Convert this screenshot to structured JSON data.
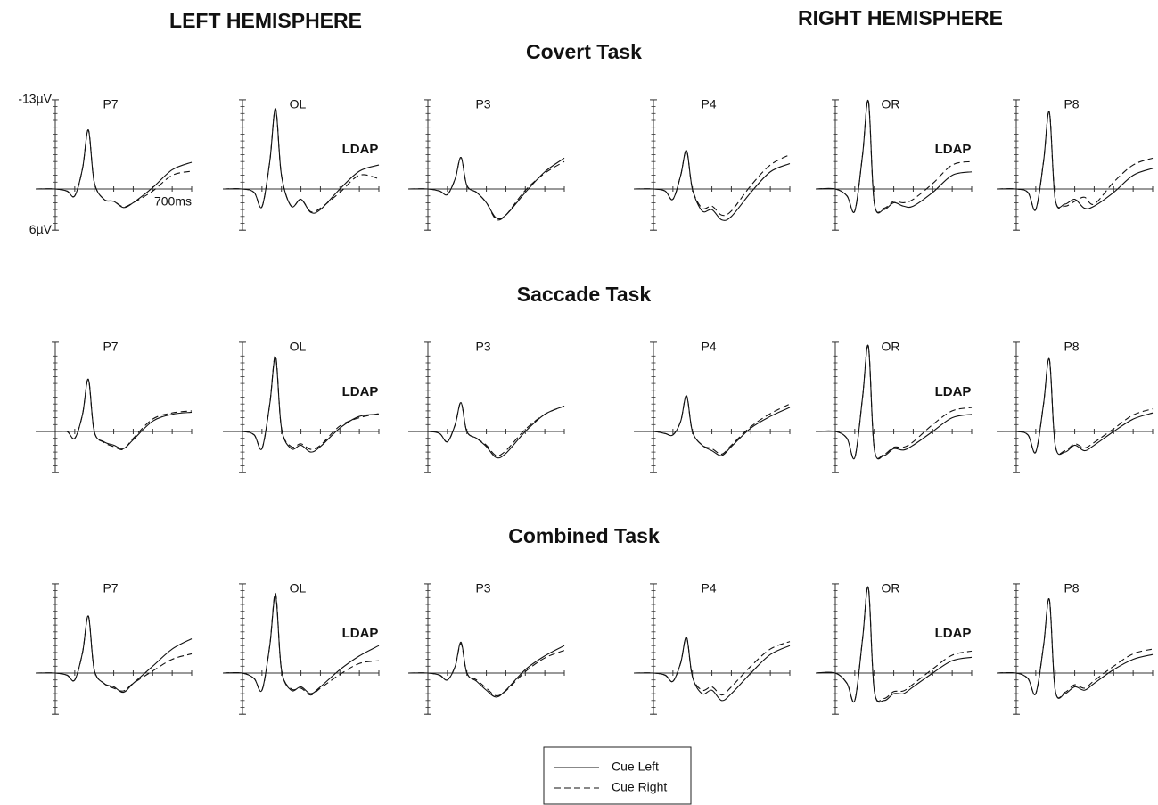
{
  "titles": {
    "left": "LEFT HEMISPHERE",
    "right": "RIGHT HEMISPHERE"
  },
  "axes": {
    "xlim": [
      -100,
      700
    ],
    "ylim": [
      6,
      -13
    ],
    "xticks": [
      0,
      100,
      200,
      300,
      400,
      500,
      600,
      {
        "value": 700,
        "label": "700ms"
      }
    ],
    "yticks": [
      {
        "value": -13,
        "label": "-13µV"
      },
      {
        "value": 6,
        "label": "6µV"
      }
    ]
  },
  "x": [
    -100,
    0,
    60,
    100,
    140,
    170,
    200,
    250,
    300,
    350,
    400,
    500,
    600,
    700
  ],
  "legend": [
    {
      "name": "Cue Left",
      "dash": "solid"
    },
    {
      "name": "Cue Right",
      "dash": "dashed"
    }
  ],
  "tasks": [
    {
      "title": "Covert Task",
      "panels": [
        {
          "label": "P7",
          "left": [
            0,
            0,
            0.3,
            1,
            -3,
            -8.6,
            -1,
            1.5,
            1.8,
            2.7,
            2,
            -0.2,
            -2.8,
            -3.9
          ],
          "right": [
            0,
            0,
            0.3,
            1,
            -3,
            -8.6,
            -1,
            1.5,
            1.8,
            2.6,
            2,
            0.3,
            -2,
            -2.6
          ]
        },
        {
          "label": "OL",
          "annotation": "LDAP",
          "left": [
            0,
            0,
            0.5,
            2.6,
            -4,
            -11.7,
            -2,
            2.5,
            1.5,
            3.4,
            3,
            0,
            -2.6,
            -3.5
          ],
          "right": [
            0,
            0,
            0.5,
            2.6,
            -4,
            -11.7,
            -2,
            2.5,
            1.5,
            3.3,
            2.8,
            0.5,
            -2,
            -1.5
          ]
        },
        {
          "label": "P3",
          "left": [
            0,
            0,
            0.3,
            0.8,
            -1.5,
            -4.6,
            -0.5,
            0.5,
            2,
            4.2,
            3.8,
            0.5,
            -2.5,
            -4.5
          ],
          "right": [
            0,
            0,
            0.3,
            0.8,
            -1.5,
            -4.6,
            -0.5,
            0.5,
            2,
            4.4,
            3.8,
            0.2,
            -2.3,
            -4
          ]
        },
        {
          "label": "P4",
          "left": [
            0,
            0,
            0.3,
            1.5,
            -2,
            -5.6,
            0,
            3.2,
            3,
            4.5,
            4,
            0.5,
            -2.5,
            -3.7
          ],
          "right": [
            0,
            0,
            0.3,
            1.5,
            -2,
            -5.6,
            0,
            2.8,
            2.5,
            3.8,
            3.2,
            -0.5,
            -3.5,
            -5
          ]
        },
        {
          "label": "OR",
          "annotation": "LDAP",
          "left": [
            0,
            0,
            1,
            3.2,
            -5,
            -12.8,
            2,
            3,
            2,
            2.5,
            2.5,
            0.5,
            -2,
            -2.5
          ],
          "right": [
            0,
            0,
            1,
            3.2,
            -5,
            -12.8,
            2,
            2.8,
            1.8,
            2,
            1.5,
            -0.8,
            -3.5,
            -4
          ]
        },
        {
          "label": "P8",
          "left": [
            0,
            0,
            0.5,
            3,
            -4,
            -11.2,
            1.5,
            2.2,
            1.5,
            2.8,
            2.5,
            0.5,
            -2,
            -3
          ],
          "right": [
            0,
            0,
            0.5,
            3,
            -4,
            -11.2,
            1.5,
            2.5,
            1.8,
            1.2,
            2.2,
            -1,
            -3.5,
            -4.5
          ]
        }
      ]
    },
    {
      "title": "Saccade Task",
      "panels": [
        {
          "label": "P7",
          "left": [
            0,
            0,
            0,
            1,
            -2.5,
            -7.6,
            0,
            1.5,
            2,
            2.5,
            1.2,
            -1.5,
            -2.5,
            -2.8
          ],
          "right": [
            0,
            0,
            0,
            1,
            -2.5,
            -7.6,
            0,
            1.6,
            2.2,
            2.6,
            1,
            -1.8,
            -2.7,
            -3
          ]
        },
        {
          "label": "OL",
          "annotation": "LDAP",
          "left": [
            0,
            0,
            0.5,
            2.5,
            -4,
            -10.8,
            -0.5,
            2.5,
            2,
            3,
            2.2,
            -0.5,
            -2.2,
            -2.5
          ],
          "right": [
            0,
            0,
            0.5,
            2.5,
            -4,
            -11,
            -0.5,
            2.2,
            1.8,
            2.6,
            2,
            -0.8,
            -2,
            -2.6
          ]
        },
        {
          "label": "P3",
          "left": [
            0,
            0,
            0.3,
            1.5,
            -1,
            -4.2,
            0,
            1,
            2.2,
            3.8,
            3.2,
            0,
            -2.5,
            -3.7
          ],
          "right": [
            0,
            0,
            0.3,
            1.5,
            -1,
            -4.2,
            0,
            1,
            2,
            3.5,
            2.8,
            -0.3,
            -2.5,
            -3.7
          ]
        },
        {
          "label": "P4",
          "left": [
            0,
            0,
            0.3,
            0.5,
            -1.5,
            -5.2,
            0,
            2,
            2.8,
            3.5,
            2.2,
            -0.5,
            -2.2,
            -3.5
          ],
          "right": [
            0,
            0,
            0.3,
            0.5,
            -1.5,
            -5.2,
            0,
            2,
            2.5,
            3.3,
            2,
            -0.7,
            -2.6,
            -4
          ]
        },
        {
          "label": "OR",
          "annotation": "LDAP",
          "left": [
            0,
            0,
            1,
            3.8,
            -5,
            -12.4,
            2.5,
            3.5,
            2.5,
            2.7,
            2,
            0,
            -2,
            -2.5
          ],
          "right": [
            0,
            0,
            1,
            3.8,
            -5,
            -12.4,
            2.5,
            3.3,
            2.3,
            2.3,
            1.5,
            -1,
            -3,
            -3.5
          ]
        },
        {
          "label": "P8",
          "left": [
            0,
            0,
            0.5,
            3,
            -4,
            -10.5,
            2,
            3,
            2,
            2.8,
            2,
            0,
            -1.8,
            -2.7
          ],
          "right": [
            0,
            0,
            0.5,
            3,
            -4,
            -10.5,
            2,
            2.8,
            1.8,
            2.4,
            1.6,
            -0.4,
            -2.4,
            -3.3
          ]
        }
      ]
    },
    {
      "title": "Combined Task",
      "panels": [
        {
          "label": "P7",
          "left": [
            0,
            0,
            0.3,
            1,
            -3,
            -8.3,
            -0.5,
            1.5,
            2,
            2.8,
            1.5,
            -1,
            -3.5,
            -5
          ],
          "right": [
            0,
            0,
            0.3,
            1,
            -3,
            -8.3,
            -0.5,
            1.5,
            2.2,
            2.6,
            1.5,
            -0.3,
            -2,
            -2.8
          ]
        },
        {
          "label": "OL",
          "annotation": "LDAP",
          "left": [
            0,
            0,
            0.8,
            2.5,
            -4,
            -11.3,
            -0.5,
            2.5,
            2,
            3,
            2,
            -0.5,
            -2.5,
            -4
          ],
          "right": [
            0,
            0,
            0.8,
            2.5,
            -4,
            -11.6,
            -0.5,
            2.3,
            2.2,
            3.2,
            2.2,
            0.2,
            -1.4,
            -1.8
          ]
        },
        {
          "label": "P3",
          "left": [
            0,
            0,
            0.3,
            1,
            -1,
            -4.5,
            0,
            1.2,
            2.5,
            3.5,
            2.5,
            -0.5,
            -2.5,
            -4
          ],
          "right": [
            0,
            0,
            0.3,
            1,
            -1,
            -4.3,
            0,
            1,
            2.2,
            3.3,
            2.6,
            -0.2,
            -2.2,
            -3.3
          ]
        },
        {
          "label": "P4",
          "left": [
            0,
            0,
            0.3,
            1.2,
            -1.5,
            -5.2,
            0.5,
            3,
            2.5,
            4,
            3,
            0,
            -2.7,
            -4
          ],
          "right": [
            0,
            0,
            0.3,
            1.2,
            -1.5,
            -5.2,
            0.5,
            2.5,
            2,
            3.2,
            2,
            -1,
            -3.5,
            -4.6
          ]
        },
        {
          "label": "OR",
          "annotation": "LDAP",
          "left": [
            0,
            0,
            1.5,
            4,
            -5,
            -12.4,
            2.5,
            4,
            3,
            3,
            2,
            0,
            -1.8,
            -2.3
          ],
          "right": [
            0,
            0,
            1.5,
            4,
            -5,
            -12.4,
            2.5,
            3.7,
            2.7,
            2.6,
            1.6,
            -0.6,
            -2.6,
            -3.2
          ]
        },
        {
          "label": "P8",
          "left": [
            0,
            0,
            0.8,
            3,
            -4,
            -10.7,
            2.5,
            3,
            2,
            2.5,
            1.5,
            -0.5,
            -2,
            -2.7
          ],
          "right": [
            0,
            0,
            0.8,
            3,
            -4,
            -10.7,
            2.5,
            2.8,
            1.7,
            2.2,
            1.1,
            -1,
            -2.8,
            -3.5
          ]
        }
      ]
    }
  ]
}
